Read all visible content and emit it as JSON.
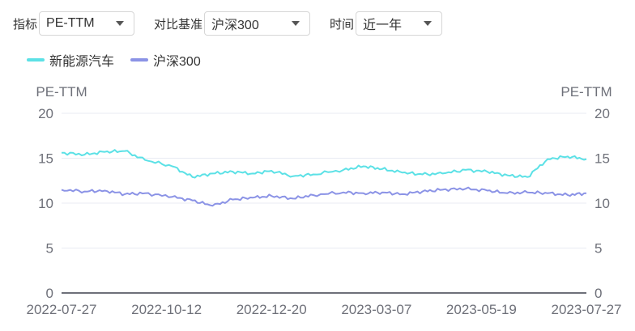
{
  "controls": {
    "metric_label": "指标",
    "metric_value": "PE-TTM",
    "benchmark_label": "对比基准",
    "benchmark_value": "沪深300",
    "time_label": "时间",
    "time_value": "近一年"
  },
  "colors": {
    "series_1": "#5ce1e6",
    "series_2": "#8b93e6",
    "grid": "#e9ebf3",
    "baseline": "#6e7079"
  },
  "chart_data": {
    "type": "line",
    "ylabel_left": "PE-TTM",
    "ylabel_right": "PE-TTM",
    "ylim": [
      0,
      20
    ],
    "yticks": [
      0,
      5,
      10,
      15,
      20
    ],
    "grid": true,
    "legend_position": "top-left",
    "xtick_labels": [
      "2022-07-27",
      "2022-10-12",
      "2022-12-20",
      "2023-03-07",
      "2023-05-19",
      "2023-07-27"
    ],
    "x": [
      "2022-07-27",
      "2022-08-12",
      "2022-08-26",
      "2022-09-09",
      "2022-09-23",
      "2022-10-12",
      "2022-10-26",
      "2022-11-09",
      "2022-11-23",
      "2022-12-07",
      "2022-12-20",
      "2023-01-04",
      "2023-01-18",
      "2023-02-08",
      "2023-02-22",
      "2023-03-07",
      "2023-03-21",
      "2023-04-04",
      "2023-04-18",
      "2023-05-04",
      "2023-05-19",
      "2023-06-02",
      "2023-06-16",
      "2023-06-30",
      "2023-07-14",
      "2023-07-27"
    ],
    "series": [
      {
        "name": "新能源汽车",
        "values": [
          15.6,
          15.4,
          15.7,
          15.8,
          14.8,
          14.1,
          12.9,
          13.3,
          13.5,
          13.3,
          13.6,
          13.0,
          13.2,
          13.7,
          14.1,
          13.8,
          13.4,
          13.2,
          13.3,
          13.7,
          13.5,
          13.1,
          12.9,
          14.9,
          15.2,
          14.9
        ]
      },
      {
        "name": "沪深300",
        "values": [
          11.5,
          11.3,
          11.4,
          11.0,
          11.1,
          10.7,
          10.3,
          9.7,
          10.4,
          10.6,
          10.8,
          10.5,
          10.9,
          11.2,
          11.1,
          11.2,
          11.0,
          11.3,
          11.5,
          11.6,
          11.4,
          11.1,
          11.2,
          11.1,
          10.9,
          11.1
        ]
      }
    ]
  }
}
